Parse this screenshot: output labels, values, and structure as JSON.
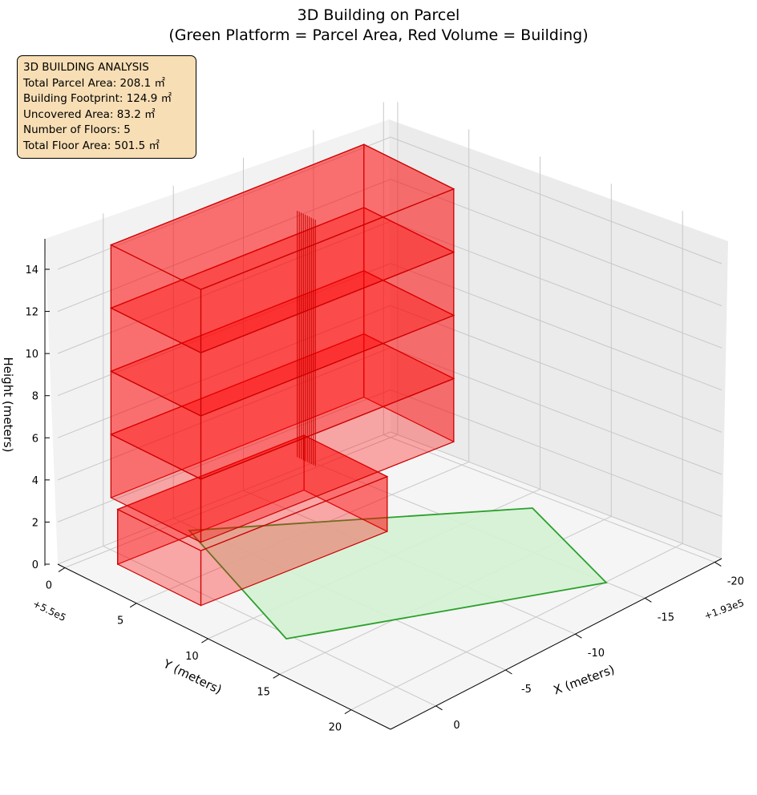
{
  "chart_data": {
    "type": "3d-mesh",
    "title": "3D Building on Parcel",
    "subtitle": "(Green Platform = Parcel Area, Red Volume = Building)",
    "xlabel": "X (meters)",
    "ylabel": "Y (meters)",
    "zlabel": "Height (meters)",
    "x_offset_label": "+1.93e5",
    "y_offset_label": "+5.5e5",
    "x_ticks": [
      "-20",
      "-15",
      "-10",
      "-5",
      "0"
    ],
    "y_ticks": [
      "0",
      "5",
      "10",
      "15",
      "20"
    ],
    "z_ticks": [
      "0",
      "2",
      "4",
      "6",
      "8",
      "10",
      "12",
      "14"
    ],
    "zlim": [
      0,
      15
    ],
    "grid": true,
    "colors": {
      "parcel": "#2ca02c",
      "parcel_fill": "#d4f2d4",
      "building": "#ff0000",
      "building_edge": "#cc0000"
    },
    "parcel": {
      "name": "Parcel Area",
      "area_m2": 208.1
    },
    "building": {
      "name": "Building",
      "floors": 5,
      "floor_height_m": 3.0,
      "height_m": 15.0
    }
  },
  "analysis": {
    "heading": "3D BUILDING ANALYSIS",
    "lines": [
      "Total Parcel Area: 208.1 ㎡",
      "Building Footprint: 124.9 ㎡",
      "Uncovered Area: 83.2 ㎡",
      "Number of Floors: 5",
      "Total Floor Area: 501.5 ㎡"
    ]
  }
}
